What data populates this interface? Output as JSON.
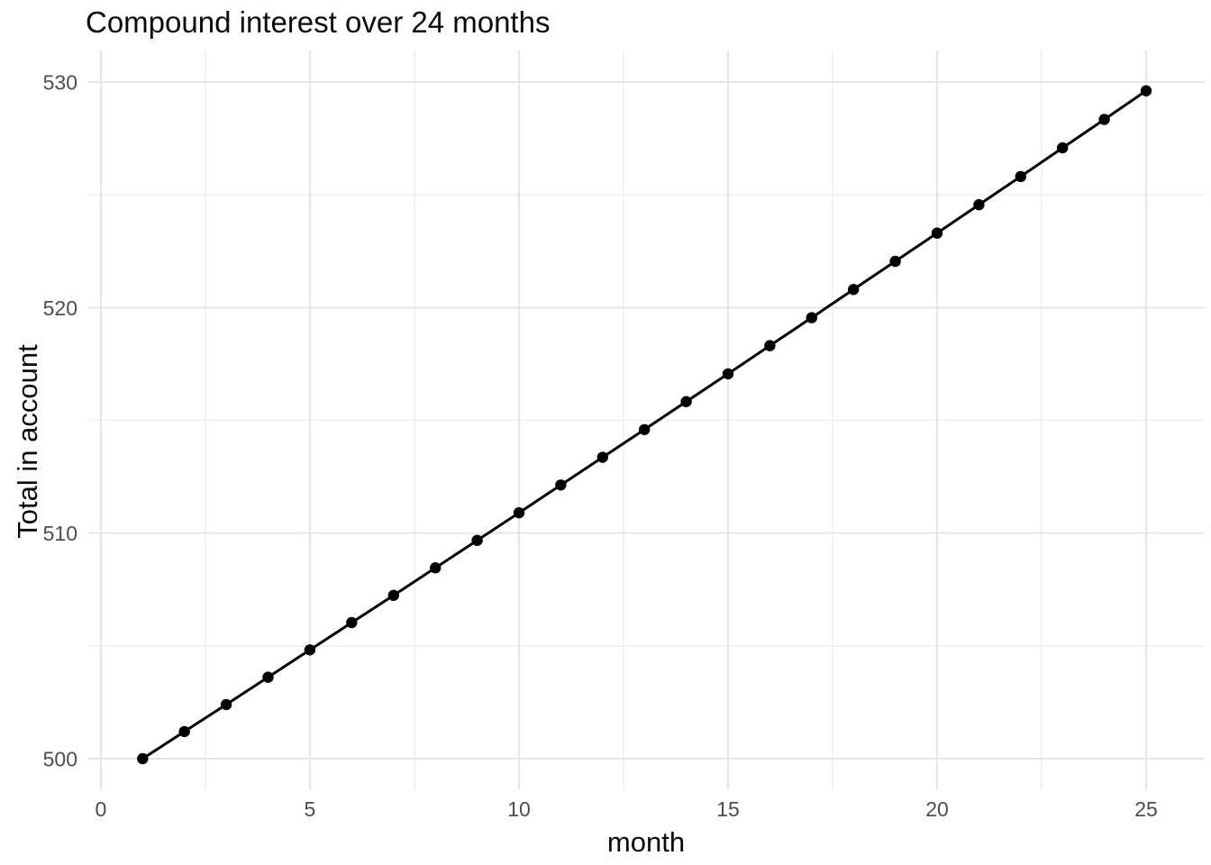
{
  "chart_data": {
    "type": "line",
    "title": "Compound interest over 24 months",
    "xlabel": "month",
    "ylabel": "Total in account",
    "series": [
      {
        "name": "total in account",
        "x": [
          1,
          2,
          3,
          4,
          5,
          6,
          7,
          8,
          9,
          10,
          11,
          12,
          13,
          14,
          15,
          16,
          17,
          18,
          19,
          20,
          21,
          22,
          23,
          24,
          25
        ],
        "y": [
          500.0,
          501.2,
          502.4,
          503.61,
          504.82,
          506.03,
          507.24,
          508.46,
          509.68,
          510.9,
          512.13,
          513.36,
          514.59,
          515.83,
          517.06,
          518.31,
          519.55,
          520.8,
          522.05,
          523.3,
          524.56,
          525.81,
          527.08,
          528.34,
          529.61
        ],
        "marker": "filled-circle",
        "line_color": "#000000",
        "point_color": "#000000"
      }
    ],
    "xlim": [
      -0.3,
      26.4
    ],
    "ylim": [
      498.6,
      531.4
    ],
    "x_ticks": [
      0,
      5,
      10,
      15,
      20,
      25
    ],
    "y_ticks": [
      500,
      510,
      520,
      530
    ],
    "x_tick_labels": [
      "0",
      "5",
      "10",
      "15",
      "20",
      "25"
    ],
    "y_tick_labels": [
      "500",
      "510",
      "520",
      "530"
    ],
    "x_minor_ticks": [
      2.5,
      7.5,
      12.5,
      17.5,
      22.5
    ],
    "y_minor_ticks": [
      505,
      515,
      525
    ],
    "grid": "on",
    "legend": "none",
    "theme": {
      "background_color": "#FFFFFF",
      "grid_major_color": "#E5E5E5",
      "grid_minor_color": "#EDEDED",
      "tick_label_color": "#4D4D4D",
      "axis_title_color": "#0A0A0A",
      "title_color": "#0A0A0A"
    }
  }
}
